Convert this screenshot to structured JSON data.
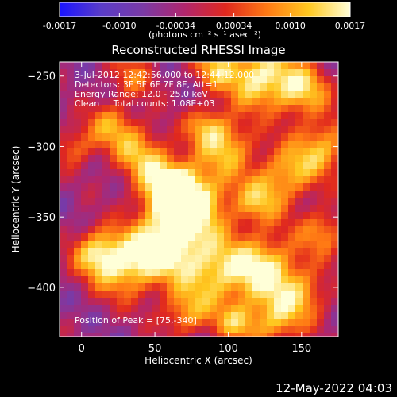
{
  "chart_data": {
    "type": "heatmap",
    "title": "Reconstructed RHESSI Image",
    "xlabel": "Heliocentric X (arcsec)",
    "ylabel": "Heliocentric Y (arcsec)",
    "xlim": [
      -15,
      175
    ],
    "ylim": [
      -435,
      -240
    ],
    "xticks": [
      0,
      50,
      100,
      150
    ],
    "yticks": [
      -250,
      -300,
      -350,
      -400
    ],
    "annotations": [
      "3-Jul-2012 12:42:56.000 to 12:44:12.000",
      "Detectors: 3F 5F 6F 7F 8F, Att=1",
      "Energy Range: 12.0 - 25.0 keV",
      "Clean     Total counts: 1.08E+03"
    ],
    "peak_label": "Position of Peak = [75,-340]",
    "peak": [
      75,
      -340
    ],
    "colorbar": {
      "min": -0.0017,
      "max": 0.0017,
      "tick_values": [
        -0.0017,
        -0.001,
        -0.00034,
        0.00034,
        0.001,
        0.0017
      ],
      "tick_labels": [
        "-0.0017",
        "-0.0010",
        "-0.00034",
        "0.00034",
        "0.0010",
        "0.0017"
      ],
      "units_label": "(photons cm⁻² s⁻¹ asec⁻²)",
      "colors": [
        "#1a14ff",
        "#5a3cc8",
        "#7a3aa6",
        "#b0266e",
        "#e0281e",
        "#ff7a14",
        "#ffc820",
        "#ffffd8"
      ]
    },
    "blobs": [
      {
        "x": 75,
        "y": -340,
        "s": 18,
        "v": 1.0
      },
      {
        "x": 60,
        "y": -330,
        "s": 14,
        "v": 0.8
      },
      {
        "x": 58,
        "y": -370,
        "s": 16,
        "v": 0.9
      },
      {
        "x": 30,
        "y": -385,
        "s": 16,
        "v": 0.85
      },
      {
        "x": 10,
        "y": -375,
        "s": 12,
        "v": 0.7
      },
      {
        "x": 90,
        "y": -390,
        "s": 18,
        "v": 0.8
      },
      {
        "x": 125,
        "y": -385,
        "s": 16,
        "v": 0.85
      },
      {
        "x": 150,
        "y": -405,
        "s": 14,
        "v": 0.6
      },
      {
        "x": 130,
        "y": -425,
        "s": 14,
        "v": 0.65
      },
      {
        "x": 70,
        "y": -420,
        "s": 12,
        "v": 0.55
      },
      {
        "x": 150,
        "y": -260,
        "s": 14,
        "v": 0.75
      },
      {
        "x": 165,
        "y": -300,
        "s": 14,
        "v": 0.7
      },
      {
        "x": 140,
        "y": -320,
        "s": 14,
        "v": 0.7
      },
      {
        "x": 120,
        "y": -340,
        "s": 12,
        "v": 0.6
      },
      {
        "x": 100,
        "y": -300,
        "s": 14,
        "v": 0.7
      },
      {
        "x": 85,
        "y": -285,
        "s": 10,
        "v": 0.55
      },
      {
        "x": 40,
        "y": -305,
        "s": 14,
        "v": 0.65
      },
      {
        "x": 20,
        "y": -285,
        "s": 12,
        "v": 0.55
      },
      {
        "x": 120,
        "y": -250,
        "s": 16,
        "v": 0.95
      },
      {
        "x": 90,
        "y": -245,
        "s": 10,
        "v": 0.6
      },
      {
        "x": 35,
        "y": -250,
        "s": 12,
        "v": 0.45
      },
      {
        "x": -5,
        "y": -300,
        "s": 10,
        "v": 0.5
      },
      {
        "x": 165,
        "y": -360,
        "s": 12,
        "v": 0.6
      },
      {
        "x": 105,
        "y": -425,
        "s": 10,
        "v": 0.55
      }
    ]
  },
  "footer": {
    "timestamp": "12-May-2022 04:03"
  }
}
